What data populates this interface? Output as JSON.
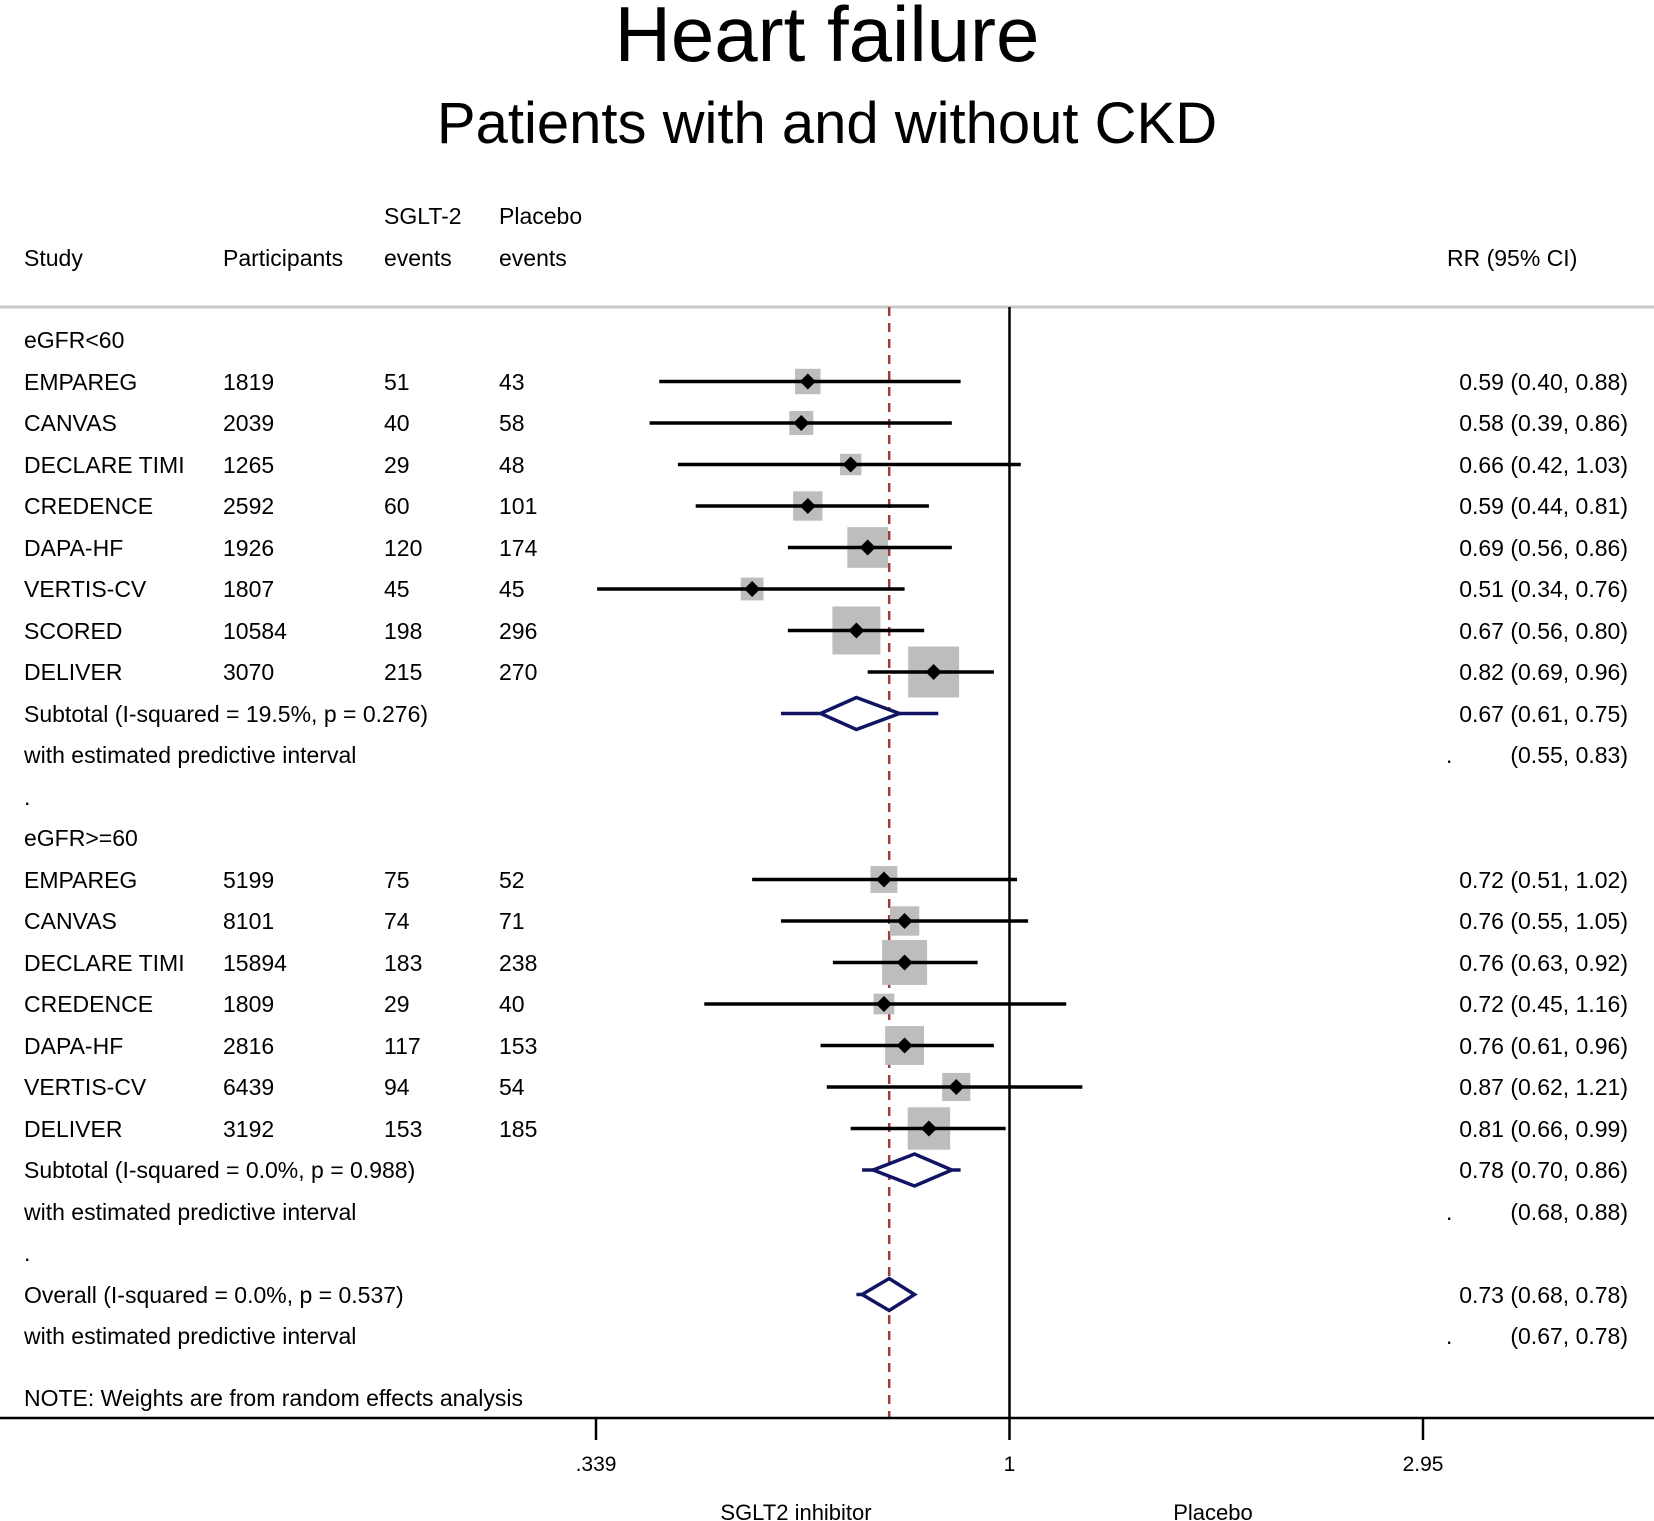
{
  "title": "Heart failure",
  "subtitle": "Patients with and without CKD",
  "columns": {
    "study": "Study",
    "participants": "Participants",
    "sglt2_line1": "SGLT-2",
    "sglt2_line2": "events",
    "placebo_line1": "Placebo",
    "placebo_line2": "events",
    "rr": "RR (95% CI)"
  },
  "note": "NOTE: Weights are from random effects analysis",
  "colors": {
    "box": "#bdbdbd",
    "line": "#000000",
    "diamond": "#101463",
    "overall_line": "#a33a3a",
    "divider": "#c8c8c8"
  },
  "chart_data": {
    "type": "forest",
    "x_scale": "log",
    "xlim": [
      0.339,
      2.95
    ],
    "xticks": [
      {
        "value": 0.339,
        "label": ".339"
      },
      {
        "value": 1,
        "label": "1"
      },
      {
        "value": 2.95,
        "label": "2.95"
      }
    ],
    "null_line": 1,
    "overall_line": 0.73,
    "xlabel_left": "SGLT2 inhibitor",
    "xlabel_right": "Placebo",
    "rows": [
      {
        "kind": "label",
        "text": "eGFR<60"
      },
      {
        "kind": "study",
        "name": "EMPAREG",
        "participants": "1819",
        "sglt2": "51",
        "placebo": "43",
        "rr": 0.59,
        "lo": 0.4,
        "hi": 0.88,
        "ci_text": "0.59 (0.40, 0.88)",
        "weight": 4.5
      },
      {
        "kind": "study",
        "name": "CANVAS",
        "participants": "2039",
        "sglt2": "40",
        "placebo": "58",
        "rr": 0.58,
        "lo": 0.39,
        "hi": 0.86,
        "ci_text": "0.58 (0.39, 0.86)",
        "weight": 4.0
      },
      {
        "kind": "study",
        "name": "DECLARE TIMI",
        "participants": "1265",
        "sglt2": "29",
        "placebo": "48",
        "rr": 0.66,
        "lo": 0.42,
        "hi": 1.03,
        "ci_text": "0.66 (0.42, 1.03)",
        "weight": 3.2
      },
      {
        "kind": "study",
        "name": "CREDENCE",
        "participants": "2592",
        "sglt2": "60",
        "placebo": "101",
        "rr": 0.59,
        "lo": 0.44,
        "hi": 0.81,
        "ci_text": "0.59 (0.44, 0.81)",
        "weight": 6.0
      },
      {
        "kind": "study",
        "name": "DAPA-HF",
        "participants": "1926",
        "sglt2": "120",
        "placebo": "174",
        "rr": 0.69,
        "lo": 0.56,
        "hi": 0.86,
        "ci_text": "0.69 (0.56, 0.86)",
        "weight": 11.5
      },
      {
        "kind": "study",
        "name": "VERTIS-CV",
        "participants": "1807",
        "sglt2": "45",
        "placebo": "45",
        "rr": 0.51,
        "lo": 0.34,
        "hi": 0.76,
        "ci_text": "0.51 (0.34, 0.76)",
        "weight": 3.6
      },
      {
        "kind": "study",
        "name": "SCORED",
        "participants": "10584",
        "sglt2": "198",
        "placebo": "296",
        "rr": 0.67,
        "lo": 0.56,
        "hi": 0.8,
        "ci_text": "0.67 (0.56, 0.80)",
        "weight": 16.0
      },
      {
        "kind": "study",
        "name": "DELIVER",
        "participants": "3070",
        "sglt2": "215",
        "placebo": "270",
        "rr": 0.82,
        "lo": 0.69,
        "hi": 0.96,
        "ci_text": "0.82 (0.69, 0.96)",
        "weight": 18.0
      },
      {
        "kind": "subtotal",
        "text": "Subtotal  (I-squared = 19.5%, p = 0.276)",
        "rr": 0.67,
        "lo": 0.61,
        "hi": 0.75,
        "pi_lo": 0.55,
        "pi_hi": 0.83,
        "ci_text": "0.67 (0.61, 0.75)"
      },
      {
        "kind": "pi",
        "text": "with estimated predictive interval",
        "dot": ".",
        "ci_text": "(0.55, 0.83)"
      },
      {
        "kind": "label",
        "text": "."
      },
      {
        "kind": "label",
        "text": "eGFR>=60"
      },
      {
        "kind": "study",
        "name": "EMPAREG",
        "participants": "5199",
        "sglt2": "75",
        "placebo": "52",
        "rr": 0.72,
        "lo": 0.51,
        "hi": 1.02,
        "ci_text": "0.72 (0.51, 1.02)",
        "weight": 5.0
      },
      {
        "kind": "study",
        "name": "CANVAS",
        "participants": "8101",
        "sglt2": "74",
        "placebo": "71",
        "rr": 0.76,
        "lo": 0.55,
        "hi": 1.05,
        "ci_text": "0.76 (0.55, 1.05)",
        "weight": 6.0
      },
      {
        "kind": "study",
        "name": "DECLARE TIMI",
        "participants": "15894",
        "sglt2": "183",
        "placebo": "238",
        "rr": 0.76,
        "lo": 0.63,
        "hi": 0.92,
        "ci_text": "0.76 (0.63, 0.92)",
        "weight": 14.0
      },
      {
        "kind": "study",
        "name": "CREDENCE",
        "participants": "1809",
        "sglt2": "29",
        "placebo": "40",
        "rr": 0.72,
        "lo": 0.45,
        "hi": 1.16,
        "ci_text": "0.72 (0.45, 1.16)",
        "weight": 3.0
      },
      {
        "kind": "study",
        "name": "DAPA-HF",
        "participants": "2816",
        "sglt2": "117",
        "placebo": "153",
        "rr": 0.76,
        "lo": 0.61,
        "hi": 0.96,
        "ci_text": "0.76 (0.61, 0.96)",
        "weight": 10.5
      },
      {
        "kind": "study",
        "name": "VERTIS-CV",
        "participants": "6439",
        "sglt2": "94",
        "placebo": "54",
        "rr": 0.87,
        "lo": 0.62,
        "hi": 1.21,
        "ci_text": "0.87 (0.62, 1.21)",
        "weight": 5.5
      },
      {
        "kind": "study",
        "name": "DELIVER",
        "participants": "3192",
        "sglt2": "153",
        "placebo": "185",
        "rr": 0.81,
        "lo": 0.66,
        "hi": 0.99,
        "ci_text": "0.81 (0.66, 0.99)",
        "weight": 12.5
      },
      {
        "kind": "subtotal",
        "text": "Subtotal  (I-squared = 0.0%, p = 0.988)",
        "rr": 0.78,
        "lo": 0.7,
        "hi": 0.86,
        "pi_lo": 0.68,
        "pi_hi": 0.88,
        "ci_text": "0.78 (0.70, 0.86)"
      },
      {
        "kind": "pi",
        "text": "with estimated predictive interval",
        "dot": ".",
        "ci_text": "(0.68, 0.88)"
      },
      {
        "kind": "label",
        "text": "."
      },
      {
        "kind": "subtotal",
        "text": "Overall  (I-squared = 0.0%, p = 0.537)",
        "rr": 0.73,
        "lo": 0.68,
        "hi": 0.78,
        "pi_lo": 0.67,
        "pi_hi": 0.78,
        "ci_text": "0.73 (0.68, 0.78)"
      },
      {
        "kind": "pi",
        "text": "with estimated predictive interval",
        "dot": ".",
        "ci_text": "(0.67, 0.78)"
      }
    ]
  }
}
